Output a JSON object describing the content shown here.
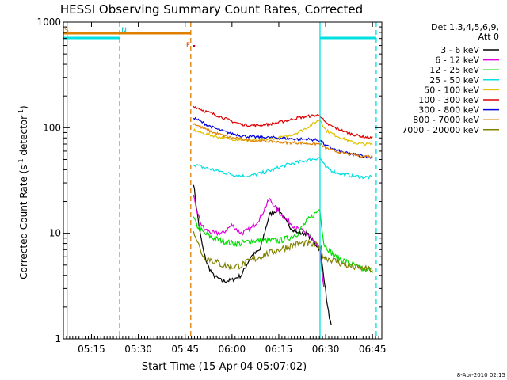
{
  "chart_data": {
    "type": "line",
    "title": "HESSI Observing Summary Count Rates, Corrected",
    "xlabel": "Start Time (15-Apr-04 05:07:02)",
    "ylabel": "Corrected Count Rate (s",
    "ylabel_sup1": "-1",
    "ylabel_mid": " detector",
    "ylabel_sup2": "-1",
    "ylabel_end": ")",
    "yscale": "log",
    "ylim": [
      1,
      1000
    ],
    "xlim_minutes": [
      5.1,
      6.8
    ],
    "x_ticks": [
      {
        "label": "05:15",
        "t": 5.25
      },
      {
        "label": "05:30",
        "t": 5.5
      },
      {
        "label": "05:45",
        "t": 5.75
      },
      {
        "label": "06:00",
        "t": 6.0
      },
      {
        "label": "06:15",
        "t": 6.25
      },
      {
        "label": "06:30",
        "t": 6.5
      },
      {
        "label": "06:45",
        "t": 6.75
      }
    ],
    "y_ticks": [
      {
        "label": "1",
        "v": 1
      },
      {
        "label": "10",
        "v": 10
      },
      {
        "label": "100",
        "v": 100
      },
      {
        "label": "1000",
        "v": 1000
      }
    ],
    "legend_header": [
      "Det 1,3,4,5,6,9,",
      "Att 0"
    ],
    "legend_placement": "right",
    "series": [
      {
        "name": "3 - 6 keV",
        "color": "#000000",
        "x": [
          5.795,
          5.81,
          5.83,
          5.85,
          5.87,
          5.9,
          5.95,
          6.0,
          6.05,
          6.1,
          6.15,
          6.2,
          6.25,
          6.3,
          6.35,
          6.4,
          6.47,
          6.49,
          6.51,
          6.53
        ],
        "y": [
          30,
          18,
          10,
          6.5,
          5,
          4,
          3.5,
          3.6,
          4,
          6,
          7,
          15,
          17,
          12,
          10,
          10,
          7,
          4,
          2,
          1.3
        ]
      },
      {
        "name": "6 - 12 keV",
        "color": "#e000e0",
        "x": [
          5.795,
          5.81,
          5.83,
          5.85,
          5.9,
          5.95,
          6.0,
          6.05,
          6.1,
          6.15,
          6.2,
          6.25,
          6.3,
          6.35,
          6.4,
          6.47,
          6.49
        ],
        "y": [
          22,
          17,
          13,
          11,
          10,
          10,
          12,
          10,
          11,
          14,
          21,
          16,
          13,
          11,
          10,
          7,
          3
        ]
      },
      {
        "name": "12 - 25 keV",
        "color": "#00e000",
        "x": [
          5.795,
          5.81,
          5.85,
          5.9,
          5.95,
          6.0,
          6.05,
          6.1,
          6.15,
          6.2,
          6.25,
          6.3,
          6.35,
          6.4,
          6.47,
          6.49,
          6.55,
          6.6,
          6.65,
          6.7,
          6.75
        ],
        "y": [
          14,
          12,
          10,
          9,
          8.5,
          8,
          8,
          8.5,
          8.5,
          8.5,
          8.5,
          9,
          10,
          13,
          17,
          8,
          6,
          5.5,
          5,
          4.5,
          4.5
        ]
      },
      {
        "name": "25 - 50 keV",
        "color": "#00e0e0",
        "x": [
          5.795,
          5.85,
          5.9,
          5.95,
          6.0,
          6.05,
          6.1,
          6.15,
          6.2,
          6.25,
          6.3,
          6.35,
          6.4,
          6.47,
          6.5,
          6.55,
          6.6,
          6.65,
          6.7,
          6.75
        ],
        "y": [
          45,
          42,
          40,
          38,
          36,
          35,
          35,
          37,
          39,
          42,
          45,
          47,
          49,
          52,
          42,
          38,
          36,
          35,
          34,
          34
        ]
      },
      {
        "name": "50 - 100 keV",
        "color": "#e0c000",
        "x": [
          5.795,
          5.85,
          5.9,
          5.95,
          6.0,
          6.05,
          6.1,
          6.15,
          6.2,
          6.25,
          6.3,
          6.35,
          6.4,
          6.47,
          6.5,
          6.55,
          6.6,
          6.65,
          6.7,
          6.75
        ],
        "y": [
          95,
          88,
          84,
          80,
          78,
          77,
          76,
          77,
          78,
          80,
          84,
          90,
          100,
          120,
          95,
          85,
          78,
          72,
          70,
          70
        ]
      },
      {
        "name": "100 - 300 keV",
        "color": "#e00000",
        "x": [
          5.795,
          5.85,
          5.9,
          5.95,
          6.0,
          6.05,
          6.1,
          6.15,
          6.2,
          6.25,
          6.3,
          6.35,
          6.4,
          6.47,
          6.5,
          6.55,
          6.6,
          6.65,
          6.7,
          6.75
        ],
        "y": [
          160,
          145,
          135,
          125,
          115,
          108,
          105,
          106,
          108,
          112,
          118,
          124,
          128,
          132,
          110,
          100,
          92,
          86,
          82,
          80
        ]
      },
      {
        "name": "300 - 800 keV",
        "color": "#0000e0",
        "x": [
          5.795,
          5.85,
          5.9,
          5.95,
          6.0,
          6.05,
          6.1,
          6.15,
          6.2,
          6.25,
          6.3,
          6.35,
          6.4,
          6.47,
          6.5,
          6.55,
          6.6,
          6.65,
          6.7,
          6.75
        ],
        "y": [
          125,
          110,
          100,
          93,
          88,
          84,
          82,
          81,
          81,
          80,
          79,
          78,
          78,
          76,
          68,
          62,
          58,
          56,
          54,
          52
        ]
      },
      {
        "name": "800 - 7000 keV",
        "color": "#e08000",
        "x": [
          5.795,
          5.85,
          5.9,
          5.95,
          6.0,
          6.05,
          6.1,
          6.15,
          6.2,
          6.25,
          6.3,
          6.35,
          6.4,
          6.47,
          6.5,
          6.55,
          6.6,
          6.65,
          6.7,
          6.75
        ],
        "y": [
          110,
          98,
          90,
          85,
          80,
          78,
          76,
          75,
          74,
          73,
          72,
          72,
          71,
          70,
          64,
          60,
          57,
          55,
          54,
          53
        ]
      },
      {
        "name": "7000 - 20000 keV",
        "color": "#808000",
        "x": [
          5.795,
          5.81,
          5.83,
          5.85,
          5.9,
          5.95,
          6.0,
          6.05,
          6.1,
          6.15,
          6.2,
          6.25,
          6.3,
          6.35,
          6.4,
          6.47,
          6.49,
          6.55,
          6.6,
          6.65,
          6.7,
          6.75
        ],
        "y": [
          11,
          9,
          7,
          6,
          5.5,
          5,
          4.8,
          5,
          5.5,
          6,
          6.5,
          7,
          7.5,
          8,
          8,
          7.5,
          6,
          5.5,
          5,
          4.8,
          4.6,
          4.5
        ]
      }
    ],
    "saa_flags": {
      "orange": [
        [
          5.1,
          5.78
        ]
      ],
      "cyan": [
        [
          5.1,
          5.4
        ],
        [
          6.47,
          6.77
        ]
      ],
      "labels": [
        {
          "text": "S",
          "t": 5.105
        },
        {
          "text": "N",
          "t": 5.41
        },
        {
          "text": "F",
          "t": 5.755
        }
      ]
    },
    "vertical_markers": [
      {
        "t": 5.12,
        "color": "#e08000",
        "style": "solid"
      },
      {
        "t": 5.4,
        "color": "#00e0e0",
        "style": "dashed"
      },
      {
        "t": 5.78,
        "color": "#e08000",
        "style": "dashed"
      },
      {
        "t": 6.47,
        "color": "#00e0e0",
        "style": "solid"
      },
      {
        "t": 6.77,
        "color": "#00e0e0",
        "style": "dashed"
      }
    ],
    "timestamp": "8-Apr-2010 02:15"
  }
}
